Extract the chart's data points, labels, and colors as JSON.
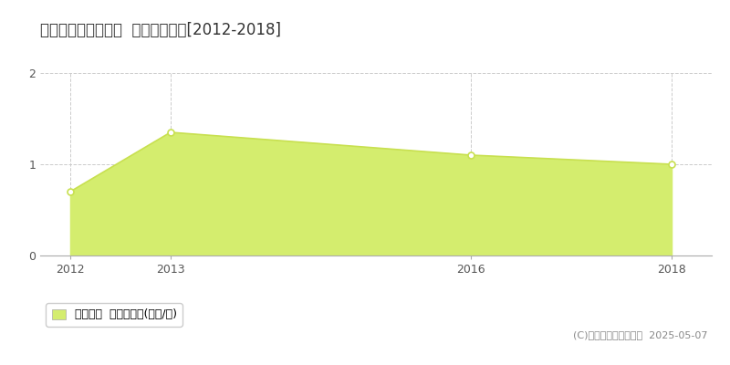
{
  "title": "邑智郡邑南町下田所  土地価格推移[2012-2018]",
  "years": [
    2012,
    2013,
    2016,
    2018
  ],
  "values": [
    0.7,
    1.35,
    1.1,
    1.0
  ],
  "line_color": "#c8e050",
  "fill_color": "#d4ed6e",
  "marker_color": "#c8e050",
  "bg_color": "#ffffff",
  "grid_color": "#cccccc",
  "xlim": [
    2011.7,
    2018.4
  ],
  "ylim": [
    0,
    2.0
  ],
  "yticks": [
    0,
    1,
    2
  ],
  "xticks": [
    2012,
    2013,
    2016,
    2018
  ],
  "legend_label": "土地価格  平均坪単価(万円/坪)",
  "copyright_text": "(C)土地価格ドットコム  2025-05-07",
  "title_fontsize": 12,
  "tick_fontsize": 9,
  "legend_fontsize": 9
}
